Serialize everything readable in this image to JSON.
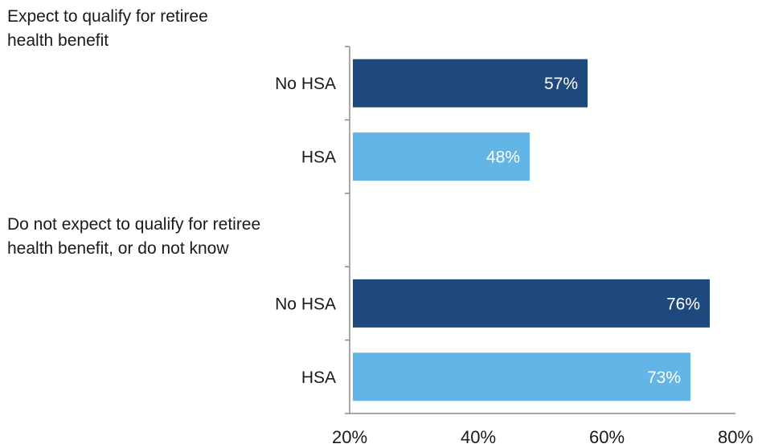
{
  "chart_data": {
    "type": "bar",
    "orientation": "horizontal",
    "xlim": [
      20,
      80
    ],
    "x_ticks": [
      "20%",
      "40%",
      "60%",
      "80%"
    ],
    "x_tick_values": [
      20,
      40,
      60,
      80
    ],
    "groups": [
      {
        "label": "Expect to qualify for retiree health benefit",
        "label_lines": [
          "Expect to qualify for retiree",
          "health benefit"
        ],
        "bars": [
          {
            "category": "No HSA",
            "value": 57,
            "label": "57%",
            "color": "#1f497d"
          },
          {
            "category": "HSA",
            "value": 48,
            "label": "48%",
            "color": "#63b5e5"
          }
        ]
      },
      {
        "label": "Do not expect to qualify for retiree health benefit, or do not know",
        "label_lines": [
          "Do not expect to qualify for retiree",
          "health benefit, or do not know"
        ],
        "bars": [
          {
            "category": "No HSA",
            "value": 76,
            "label": "76%",
            "color": "#1f497d"
          },
          {
            "category": "HSA",
            "value": 73,
            "label": "73%",
            "color": "#63b5e5"
          }
        ]
      }
    ],
    "colors": {
      "no_hsa": "#1f497d",
      "hsa": "#63b5e5",
      "axis": "#8c8c8c"
    }
  }
}
